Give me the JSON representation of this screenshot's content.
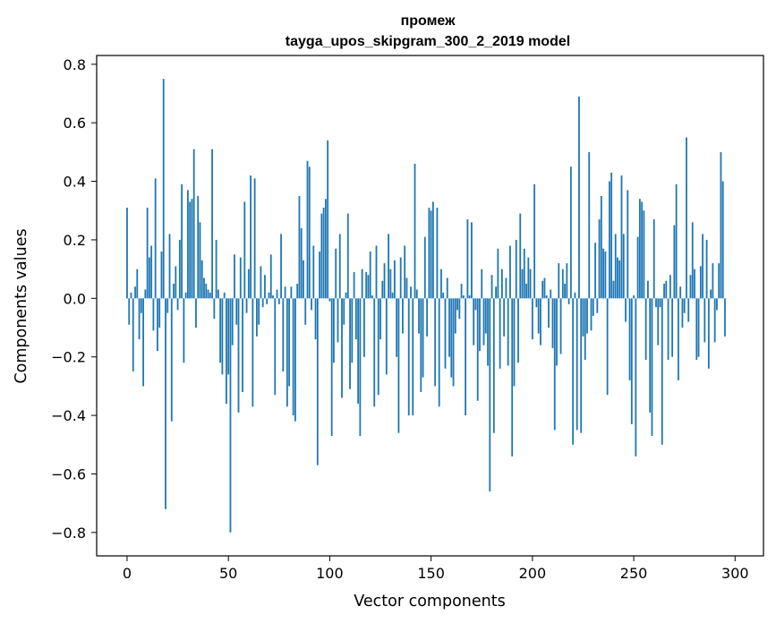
{
  "chart_data": {
    "type": "bar",
    "title_line1": "промеж",
    "title_line2": "tayga_upos_skipgram_300_2_2019 model",
    "xlabel": "Vector components",
    "ylabel": "Components values",
    "xlim": [
      -15,
      314
    ],
    "ylim": [
      -0.88,
      0.83
    ],
    "xticks": [
      0,
      50,
      100,
      150,
      200,
      250,
      300
    ],
    "xtick_labels": [
      "0",
      "50",
      "100",
      "150",
      "200",
      "250",
      "300"
    ],
    "yticks": [
      -0.8,
      -0.6,
      -0.4,
      -0.2,
      0.0,
      0.2,
      0.4,
      0.6,
      0.8
    ],
    "ytick_labels": [
      "−0.8",
      "−0.6",
      "−0.4",
      "−0.2",
      "0.0",
      "0.2",
      "0.4",
      "0.6",
      "0.8"
    ],
    "bar_color": "#1f77b4",
    "grid": false,
    "values": [
      0.31,
      -0.09,
      0.02,
      -0.25,
      0.04,
      0.1,
      -0.14,
      -0.05,
      -0.3,
      0.03,
      0.31,
      0.14,
      0.18,
      -0.11,
      0.41,
      -0.18,
      -0.1,
      0.16,
      0.75,
      -0.72,
      -0.05,
      0.22,
      -0.42,
      0.05,
      0.11,
      -0.04,
      0.2,
      0.39,
      -0.22,
      0.02,
      0.37,
      0.33,
      0.34,
      0.51,
      -0.1,
      0.35,
      0.26,
      0.13,
      0.07,
      0.05,
      0.03,
      0.02,
      0.51,
      -0.07,
      0.2,
      0.03,
      -0.22,
      -0.26,
      0.02,
      -0.36,
      -0.26,
      -0.8,
      -0.16,
      0.15,
      -0.09,
      -0.39,
      0.14,
      -0.32,
      0.33,
      -0.05,
      0.1,
      0.42,
      -0.37,
      0.41,
      -0.13,
      -0.09,
      0.11,
      -0.03,
      0.08,
      -0.02,
      0.02,
      0.15,
      0.01,
      -0.33,
      0.03,
      -0.02,
      0.22,
      -0.25,
      0.04,
      -0.37,
      -0.3,
      0.04,
      -0.4,
      -0.42,
      0.05,
      0.35,
      0.24,
      0.13,
      -0.09,
      0.47,
      0.45,
      -0.04,
      0.18,
      -0.14,
      -0.57,
      0.16,
      0.29,
      0.31,
      0.34,
      0.54,
      -0.01,
      -0.47,
      -0.22,
      0.17,
      -0.15,
      0.22,
      -0.34,
      -0.09,
      0.02,
      0.29,
      -0.31,
      -0.22,
      0.09,
      -0.14,
      -0.36,
      -0.47,
      0.1,
      -0.2,
      0.09,
      0.08,
      0.16,
      0.01,
      -0.37,
      0.18,
      -0.33,
      -0.14,
      0.06,
      0.12,
      -0.26,
      0.22,
      0.1,
      0.02,
      0.13,
      -0.2,
      -0.46,
      0.14,
      -0.12,
      0.18,
      0.07,
      -0.4,
      0.04,
      -0.4,
      0.46,
      0.03,
      -0.12,
      -0.32,
      -0.27,
      0.21,
      -0.13,
      0.31,
      0.3,
      0.33,
      -0.3,
      0.31,
      -0.37,
      0.1,
      0.02,
      -0.24,
      0.07,
      -0.2,
      -0.27,
      -0.3,
      -0.12,
      -0.04,
      -0.07,
      0.05,
      0.01,
      -0.4,
      0.27,
      0.01,
      0.26,
      -0.16,
      -0.04,
      -0.35,
      -0.18,
      0.1,
      -0.16,
      -0.12,
      -0.23,
      -0.66,
      0.08,
      -0.46,
      0.04,
      0.17,
      -0.24,
      0.1,
      -0.13,
      0.07,
      -0.23,
      0.18,
      -0.54,
      -0.3,
      0.2,
      -0.22,
      0.29,
      0.1,
      0.17,
      0.05,
      0.14,
      0.1,
      -0.14,
      0.39,
      -0.03,
      -0.12,
      -0.16,
      0.06,
      0.07,
      0.01,
      -0.1,
      0.03,
      -0.17,
      -0.45,
      -0.23,
      0.12,
      -0.19,
      0.1,
      0.05,
      0.12,
      -0.02,
      0.45,
      -0.5,
      0.02,
      -0.45,
      0.69,
      -0.46,
      -0.13,
      -0.21,
      -0.12,
      0.5,
      -0.11,
      -0.06,
      0.19,
      -0.05,
      0.27,
      0.35,
      0.17,
      0.16,
      -0.33,
      0.4,
      0.43,
      0.06,
      0.22,
      0.14,
      0.13,
      0.42,
      0.22,
      -0.08,
      0.37,
      -0.28,
      -0.43,
      0.01,
      -0.54,
      0.21,
      0.34,
      0.33,
      0.3,
      -0.21,
      0.06,
      -0.39,
      -0.47,
      0.27,
      -0.03,
      -0.16,
      -0.03,
      -0.5,
      0.05,
      0.06,
      -0.21,
      0.08,
      -0.2,
      0.25,
      0.39,
      -0.28,
      0.04,
      -0.1,
      -0.05,
      0.55,
      -0.08,
      0.08,
      0.26,
      0.1,
      -0.21,
      -0.2,
      0.11,
      0.22,
      -0.15,
      0.2,
      -0.24,
      0.03,
      0.12,
      -0.15,
      -0.04,
      0.12,
      0.5,
      0.4,
      -0.13
    ]
  }
}
